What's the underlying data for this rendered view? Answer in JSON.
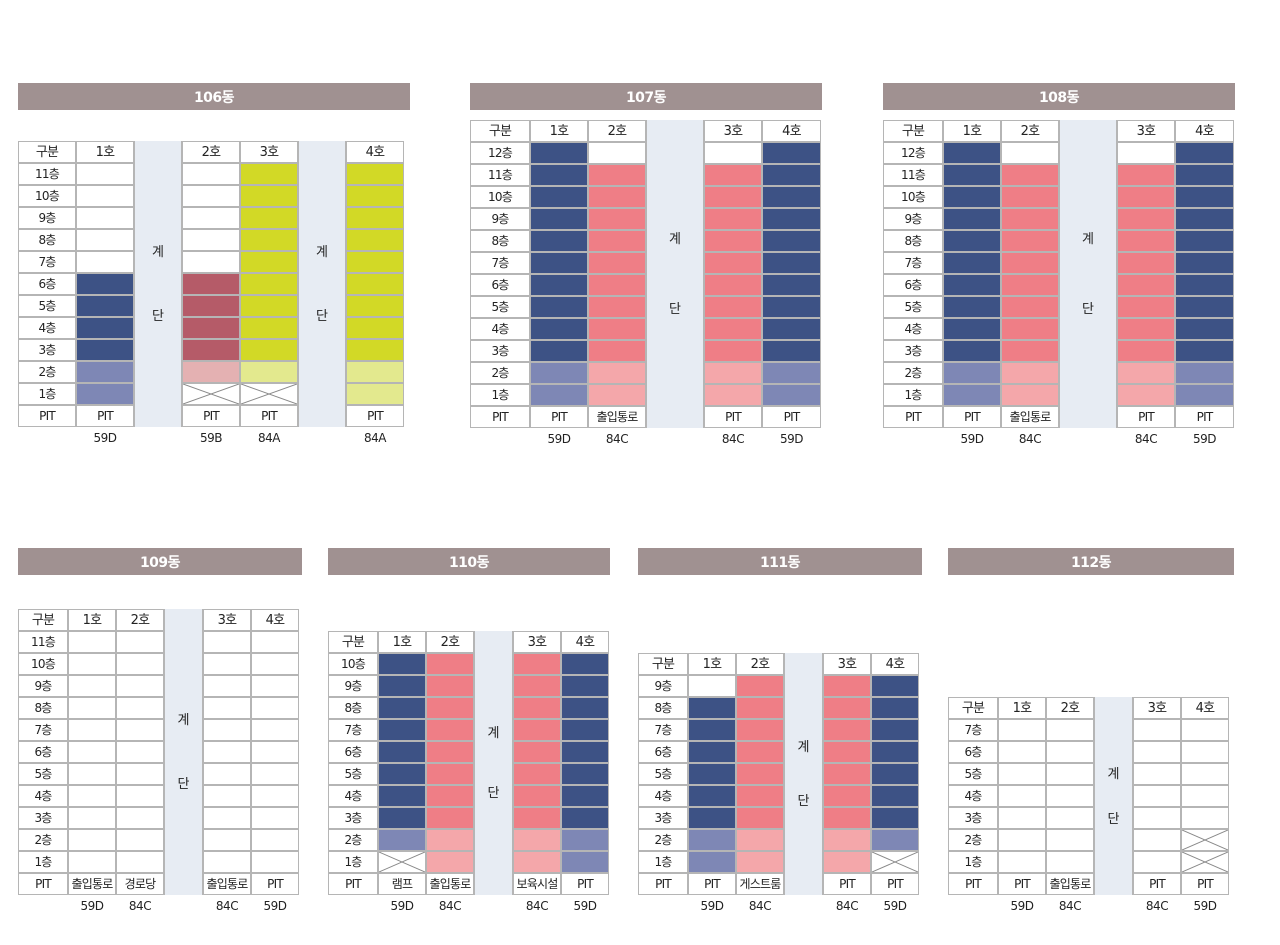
{
  "colors": {
    "59D": "#3d5285",
    "59D_low": "#7e87b5",
    "84C": "#ef7e86",
    "84C_low": "#f4a7aa",
    "59B": "#b55b68",
    "59B_low": "#e4b1b2",
    "84A": "#d2d926",
    "84A_low": "#e3e98e",
    "title_bar": "#a09191",
    "stair": "#e7ecf3"
  },
  "labels": {
    "category": "구분",
    "pit": "PIT",
    "stair_top": "계",
    "stair_bottom": "단"
  },
  "buildings": [
    {
      "name": "106동",
      "floors": 11,
      "stair_after": [
        1,
        3
      ],
      "units": [
        {
          "label": "1호",
          "type": "59D",
          "top": 6,
          "low": 2,
          "pit": "PIT",
          "x_floors": []
        },
        {
          "label": "2호",
          "type": "59B",
          "top": 6,
          "low": 2,
          "pit": "PIT",
          "x_floors": [
            1
          ]
        },
        {
          "label": "3호",
          "type": "84A",
          "top": 11,
          "low": 2,
          "pit": "PIT",
          "x_floors": [
            1
          ]
        },
        {
          "label": "4호",
          "type": "84A",
          "top": 11,
          "low": 2,
          "pit": "PIT",
          "x_floors": []
        }
      ]
    },
    {
      "name": "107동",
      "floors": 12,
      "stair_after": [
        2
      ],
      "units": [
        {
          "label": "1호",
          "type": "59D",
          "top": 12,
          "low": 2,
          "pit": "PIT",
          "x_floors": []
        },
        {
          "label": "2호",
          "type": "84C",
          "top": 11,
          "low": 2,
          "pit": "출입통로",
          "x_floors": []
        },
        {
          "label": "3호",
          "type": "84C",
          "top": 11,
          "low": 2,
          "pit": "PIT",
          "x_floors": []
        },
        {
          "label": "4호",
          "type": "59D",
          "top": 12,
          "low": 2,
          "pit": "PIT",
          "x_floors": []
        }
      ]
    },
    {
      "name": "108동",
      "floors": 12,
      "stair_after": [
        2
      ],
      "units": [
        {
          "label": "1호",
          "type": "59D",
          "top": 12,
          "low": 2,
          "pit": "PIT",
          "x_floors": []
        },
        {
          "label": "2호",
          "type": "84C",
          "top": 11,
          "low": 2,
          "pit": "출입통로",
          "x_floors": []
        },
        {
          "label": "3호",
          "type": "84C",
          "top": 11,
          "low": 2,
          "pit": "PIT",
          "x_floors": []
        },
        {
          "label": "4호",
          "type": "59D",
          "top": 12,
          "low": 2,
          "pit": "PIT",
          "x_floors": []
        }
      ]
    },
    {
      "name": "109동",
      "floors": 11,
      "stair_after": [
        2
      ],
      "units": [
        {
          "label": "1호",
          "type": "59D",
          "top": 0,
          "low": 0,
          "pit": "출입통로",
          "x_floors": []
        },
        {
          "label": "2호",
          "type": "84C",
          "top": 0,
          "low": 0,
          "pit": "경로당",
          "x_floors": []
        },
        {
          "label": "3호",
          "type": "84C",
          "top": 0,
          "low": 0,
          "pit": "출입통로",
          "x_floors": []
        },
        {
          "label": "4호",
          "type": "59D",
          "top": 0,
          "low": 0,
          "pit": "PIT",
          "x_floors": []
        }
      ]
    },
    {
      "name": "110동",
      "floors": 10,
      "stair_after": [
        2
      ],
      "units": [
        {
          "label": "1호",
          "type": "59D",
          "top": 10,
          "low": 2,
          "pit": "램프",
          "x_floors": [
            1
          ]
        },
        {
          "label": "2호",
          "type": "84C",
          "top": 10,
          "low": 2,
          "pit": "출입통로",
          "x_floors": []
        },
        {
          "label": "3호",
          "type": "84C",
          "top": 10,
          "low": 2,
          "pit": "보육시설",
          "x_floors": []
        },
        {
          "label": "4호",
          "type": "59D",
          "top": 10,
          "low": 2,
          "pit": "PIT",
          "x_floors": []
        }
      ]
    },
    {
      "name": "111동",
      "floors": 9,
      "stair_after": [
        2
      ],
      "units": [
        {
          "label": "1호",
          "type": "59D",
          "top": 8,
          "low": 2,
          "pit": "PIT",
          "x_floors": []
        },
        {
          "label": "2호",
          "type": "84C",
          "top": 9,
          "low": 2,
          "pit": "게스트룸",
          "x_floors": []
        },
        {
          "label": "3호",
          "type": "84C",
          "top": 9,
          "low": 2,
          "pit": "PIT",
          "x_floors": []
        },
        {
          "label": "4호",
          "type": "59D",
          "top": 9,
          "low": 2,
          "pit": "PIT",
          "x_floors": [
            1
          ]
        }
      ]
    },
    {
      "name": "112동",
      "floors": 7,
      "stair_after": [
        2
      ],
      "units": [
        {
          "label": "1호",
          "type": "59D",
          "top": 0,
          "low": 0,
          "pit": "PIT",
          "x_floors": []
        },
        {
          "label": "2호",
          "type": "84C",
          "top": 0,
          "low": 0,
          "pit": "출입통로",
          "x_floors": []
        },
        {
          "label": "3호",
          "type": "84C",
          "top": 0,
          "low": 0,
          "pit": "PIT",
          "x_floors": []
        },
        {
          "label": "4호",
          "type": "59D",
          "top": 0,
          "low": 0,
          "pit": "PIT",
          "x_floors": [
            1,
            2
          ]
        }
      ]
    }
  ]
}
